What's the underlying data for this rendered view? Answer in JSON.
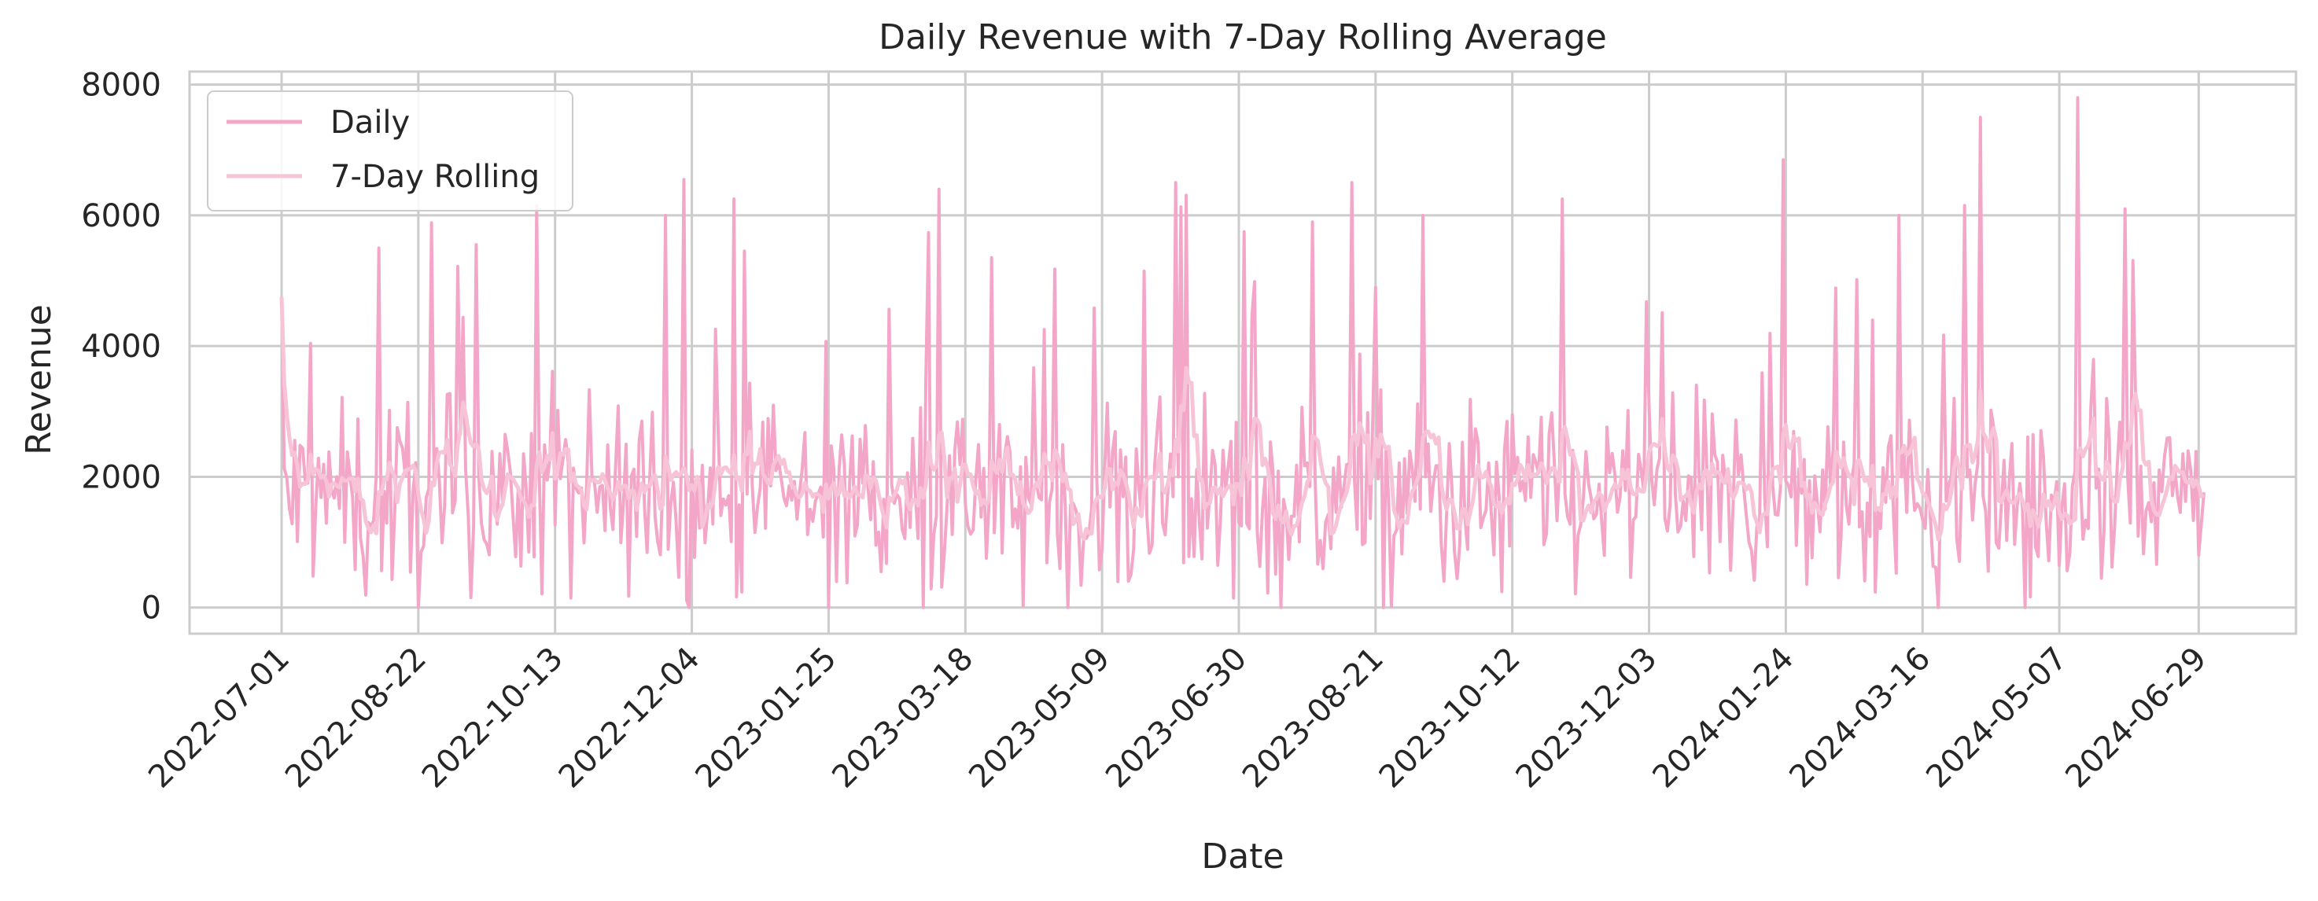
{
  "chart_data": {
    "type": "line",
    "title": "Daily Revenue with 7-Day Rolling Average",
    "xlabel": "Date",
    "ylabel": "Revenue",
    "x_start": "2022-07-01",
    "x_end": "2024-07-01",
    "xlim": [
      "2022-05-27",
      "2024-08-05"
    ],
    "ylim": [
      -400,
      8200
    ],
    "y_ticks": [
      0,
      2000,
      4000,
      6000,
      8000
    ],
    "y_tick_labels": [
      "0",
      "2000",
      "4000",
      "6000",
      "8000"
    ],
    "x_tick_labels": [
      "2022-07-01",
      "2022-08-22",
      "2022-10-13",
      "2022-12-04",
      "2023-01-25",
      "2023-03-18",
      "2023-05-09",
      "2023-06-30",
      "2023-08-21",
      "2023-10-12",
      "2023-12-03",
      "2024-01-24",
      "2024-03-16",
      "2024-05-07",
      "2024-06-29"
    ],
    "grid": true,
    "legend_position": "upper-left",
    "series": [
      {
        "name": "Daily",
        "color": "#f4a6c8",
        "kind": "daily",
        "min": 0,
        "max": 7800,
        "typical": 2000
      },
      {
        "name": "7-Day Rolling",
        "color": "#f7c3d6",
        "kind": "rolling_mean_7"
      }
    ],
    "peaks": [
      {
        "date": "2022-07-01",
        "value": 4750
      },
      {
        "date": "2022-08-07",
        "value": 5500
      },
      {
        "date": "2022-09-13",
        "value": 5550
      },
      {
        "date": "2022-10-06",
        "value": 6150
      },
      {
        "date": "2022-11-24",
        "value": 6000
      },
      {
        "date": "2022-12-01",
        "value": 6550
      },
      {
        "date": "2022-12-20",
        "value": 6250
      },
      {
        "date": "2023-03-08",
        "value": 6400
      },
      {
        "date": "2023-06-06",
        "value": 6500
      },
      {
        "date": "2023-07-02",
        "value": 5750
      },
      {
        "date": "2023-07-28",
        "value": 5900
      },
      {
        "date": "2023-08-12",
        "value": 6500
      },
      {
        "date": "2023-09-08",
        "value": 6000
      },
      {
        "date": "2023-10-31",
        "value": 6250
      },
      {
        "date": "2024-01-23",
        "value": 6850
      },
      {
        "date": "2024-03-07",
        "value": 6000
      },
      {
        "date": "2024-04-01",
        "value": 6150
      },
      {
        "date": "2024-04-07",
        "value": 7500
      },
      {
        "date": "2024-05-14",
        "value": 7800
      },
      {
        "date": "2024-06-01",
        "value": 6100
      }
    ]
  }
}
